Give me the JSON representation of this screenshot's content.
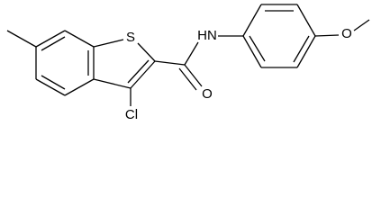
{
  "atoms": [
    {
      "label": "S"
    },
    {
      "label": "HN"
    },
    {
      "label": "O"
    },
    {
      "label": "O"
    },
    {
      "label": "Cl"
    }
  ]
}
